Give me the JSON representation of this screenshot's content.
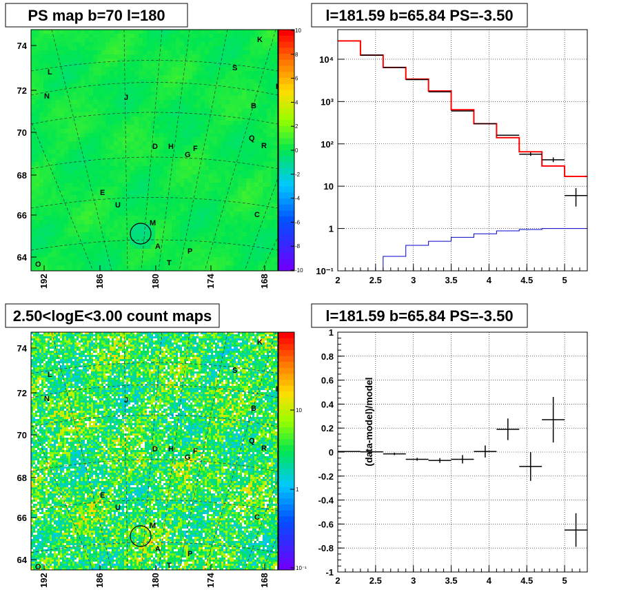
{
  "chart_data": [
    {
      "type": "heatmap",
      "title": "PS map b=70 l=180",
      "x_ticks": [
        "192",
        "186",
        "180",
        "174",
        "168"
      ],
      "y_ticks": [
        "64",
        "66",
        "68",
        "70",
        "72",
        "74"
      ],
      "colorbar_ticks": [
        "10",
        "8",
        "6",
        "4",
        "2",
        "0",
        "-2",
        "-4",
        "-6",
        "-8",
        "-10"
      ],
      "zlim": [
        -10,
        10
      ],
      "circle_source": "M",
      "sources": [
        "K",
        "L",
        "S",
        "N",
        "J",
        "B",
        "Q",
        "R",
        "D",
        "H",
        "F",
        "G",
        "E",
        "U",
        "C",
        "M",
        "A",
        "P",
        "T",
        "O",
        "I"
      ]
    },
    {
      "type": "line",
      "title": "l=181.59 b=65.84 PS=-3.50",
      "log_y": true,
      "xlim": [
        2,
        5.3
      ],
      "ylim": [
        0.1,
        50000
      ],
      "x_ticks": [
        "2",
        "2.5",
        "3",
        "3.5",
        "4",
        "4.5",
        "5"
      ],
      "y_ticks": [
        "10⁻¹",
        "1",
        "10",
        "10²",
        "10³",
        "10⁴"
      ],
      "series": [
        {
          "kind": "step",
          "color": "#ff0000",
          "edges": [
            2.0,
            2.3,
            2.6,
            2.9,
            3.2,
            3.5,
            3.8,
            4.1,
            4.4,
            4.7,
            5.0,
            5.3
          ],
          "values": [
            27000,
            12500,
            6400,
            3400,
            1780,
            640,
            300,
            140,
            65,
            30,
            17
          ]
        },
        {
          "kind": "step",
          "color": "#0000cc",
          "edges": [
            2.3,
            2.6,
            2.9,
            3.2,
            3.5,
            3.8,
            4.1,
            4.4,
            4.7,
            5.0,
            5.3
          ],
          "values": [
            0.1,
            0.22,
            0.4,
            0.5,
            0.62,
            0.75,
            0.88,
            0.95,
            1.0,
            1.0
          ]
        },
        {
          "kind": "points",
          "color": "#000000",
          "x": [
            2.45,
            2.75,
            3.05,
            3.35,
            3.65,
            3.95,
            4.25,
            4.55,
            4.85,
            5.15
          ],
          "y": [
            12500,
            6400,
            3300,
            1700,
            600,
            300,
            160,
            57,
            42,
            6
          ],
          "xerr": 0.15,
          "yerr_hi": [
            0,
            0,
            0,
            0,
            0,
            0,
            0,
            6,
            6,
            3
          ],
          "yerr_lo": [
            0,
            0,
            0,
            0,
            0,
            0,
            0,
            5,
            5,
            2.7
          ]
        }
      ]
    },
    {
      "type": "heatmap",
      "title": "2.50<logE<3.00 count maps",
      "x_ticks": [
        "192",
        "186",
        "180",
        "174",
        "168"
      ],
      "y_ticks": [
        "64",
        "66",
        "68",
        "70",
        "72",
        "74"
      ],
      "colorbar_ticks": [
        "10",
        "1",
        "10⁻¹"
      ],
      "log_z": true,
      "circle_source": "M",
      "hotspots": [
        "A",
        "B"
      ],
      "sources": [
        "K",
        "L",
        "S",
        "N",
        "J",
        "B",
        "Q",
        "R",
        "D",
        "H",
        "F",
        "G",
        "E",
        "U",
        "C",
        "M",
        "A",
        "P",
        "T",
        "O",
        "I"
      ]
    },
    {
      "type": "scatter",
      "title": "l=181.59 b=65.84 PS=-3.50",
      "ylabel": "(data-model)/model",
      "xlim": [
        2,
        5.3
      ],
      "ylim": [
        -1,
        1
      ],
      "x_ticks": [
        "2",
        "2.5",
        "3",
        "3.5",
        "4",
        "4.5",
        "5"
      ],
      "y_ticks": [
        "1",
        "0.8",
        "0.6",
        "0.4",
        "0.2",
        "0",
        "-0.2",
        "-0.4",
        "-0.6",
        "-0.8",
        "-1"
      ],
      "x": [
        2.15,
        2.45,
        2.75,
        3.05,
        3.35,
        3.65,
        3.95,
        4.25,
        4.55,
        4.85,
        5.15
      ],
      "y": [
        0.005,
        0.002,
        -0.015,
        -0.06,
        -0.07,
        -0.06,
        0.005,
        0.19,
        -0.12,
        0.27,
        -0.65
      ],
      "xerr": 0.15,
      "yerr": [
        0.003,
        0.005,
        0.01,
        0.012,
        0.02,
        0.035,
        0.05,
        0.09,
        0.12,
        0.19,
        0.14
      ]
    }
  ]
}
